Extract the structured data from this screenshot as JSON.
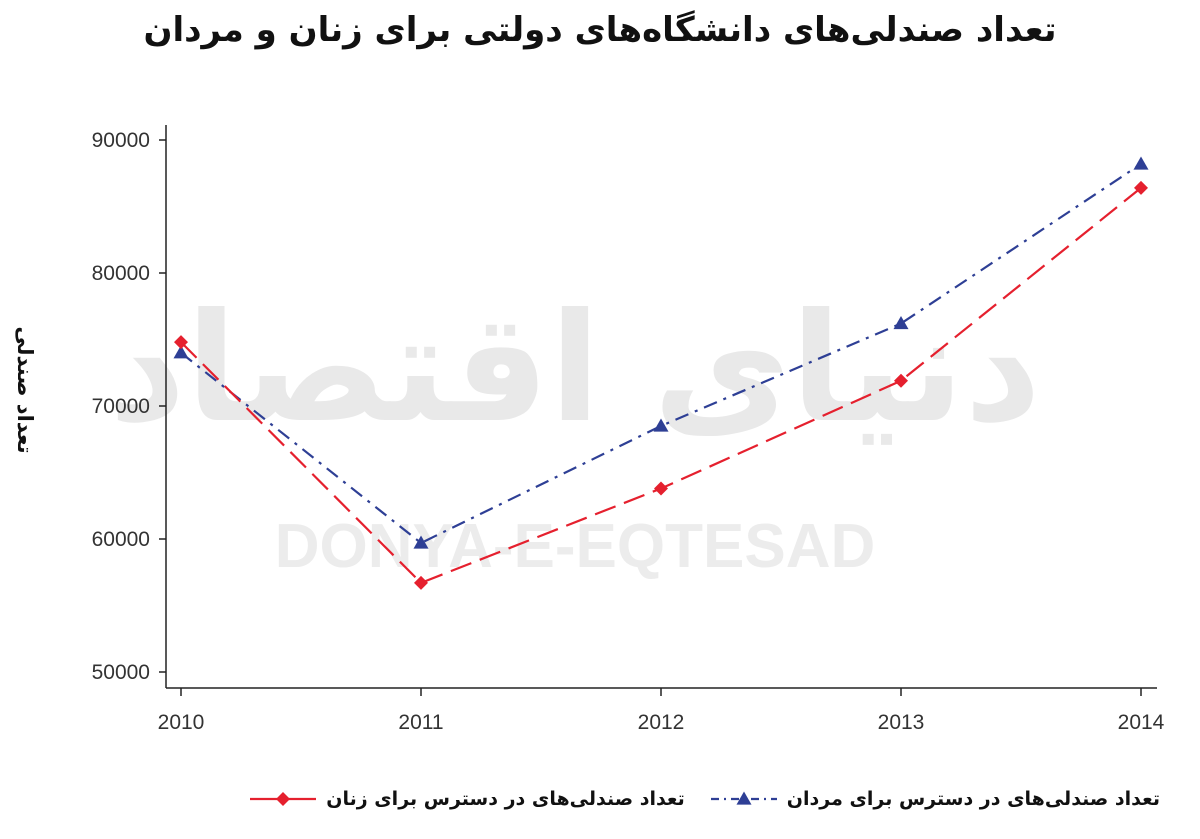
{
  "chart_data": {
    "type": "line",
    "title": "تعداد صندلی‌های دانشگاه‌های دولتی برای زنان و مردان",
    "xlabel": "",
    "ylabel": "تعداد صندلی",
    "x": [
      "2010",
      "2011",
      "2012",
      "2013",
      "2014"
    ],
    "y_ticks": [
      "50000",
      "60000",
      "70000",
      "80000",
      "90000"
    ],
    "ylim": [
      49000,
      91000
    ],
    "series": [
      {
        "name": "تعداد صندلی‌های در دسترس برای مردان",
        "values": [
          74000,
          59700,
          68500,
          76200,
          88200
        ],
        "color": "#2e3f95",
        "marker": "triangle",
        "line_style": "dash-dot"
      },
      {
        "name": "تعداد صندلی‌های در دسترس برای زنان",
        "values": [
          74800,
          56700,
          63800,
          71900,
          86400
        ],
        "color": "#e5202e",
        "marker": "diamond",
        "line_style": "long-dash"
      }
    ],
    "grid": false,
    "legend_position": "bottom"
  },
  "watermark": {
    "fa": "دنیای اقتصاد",
    "en": "DONYA-E-EQTESAD"
  }
}
